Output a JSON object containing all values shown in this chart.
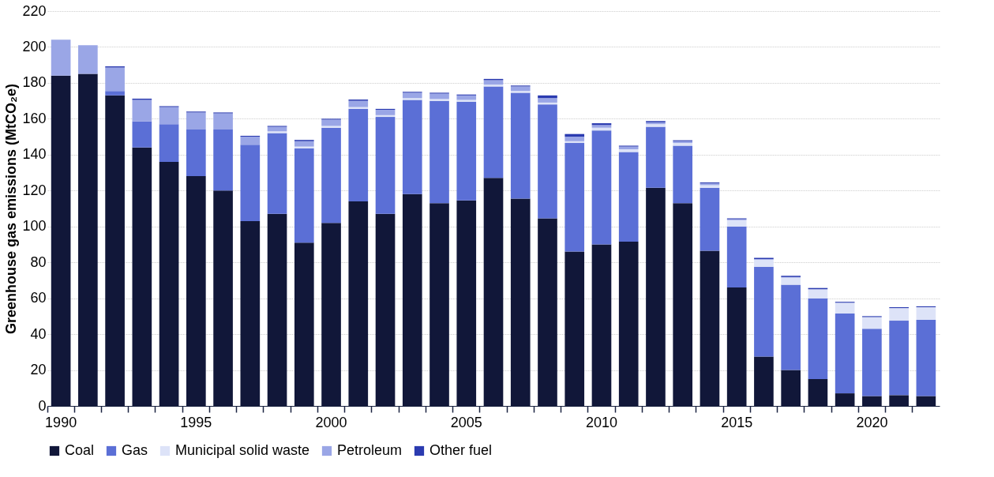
{
  "chart_data": {
    "type": "bar",
    "stacked": true,
    "ylabel": "Greenhouse gas emissions (MtCO₂e)",
    "categories": [
      "1990",
      null,
      null,
      null,
      null,
      "1995",
      null,
      null,
      null,
      null,
      "2000",
      null,
      null,
      null,
      null,
      "2005",
      null,
      null,
      null,
      null,
      "2010",
      null,
      null,
      null,
      null,
      "2015",
      null,
      null,
      null,
      null,
      "2020",
      null,
      null
    ],
    "series": [
      {
        "name": "Coal",
        "color": "#111739",
        "values": [
          184,
          185,
          173,
          144,
          136,
          128,
          120,
          103,
          107,
          91,
          102,
          114,
          107,
          118,
          113,
          114.5,
          127,
          115.5,
          104.5,
          86,
          90,
          91.5,
          121.5,
          113,
          86.5,
          66,
          27.5,
          20,
          15,
          7,
          5.5,
          6,
          5.5
        ]
      },
      {
        "name": "Gas",
        "color": "#5b6fd6",
        "values": [
          0,
          0,
          2.5,
          14.5,
          21,
          26,
          34,
          42.5,
          45,
          52.5,
          53,
          51.5,
          54,
          52.5,
          57,
          55,
          51,
          59,
          63.5,
          60.5,
          63.5,
          50,
          34,
          32,
          35,
          34,
          50,
          47.5,
          45,
          44.5,
          37.5,
          41.5,
          42.5
        ]
      },
      {
        "name": "Municipal solid waste",
        "color": "#dde3f8",
        "values": [
          0,
          0,
          0,
          0,
          0,
          0,
          0,
          0,
          1,
          1,
          1,
          1,
          1,
          1,
          1,
          1,
          1,
          1,
          1,
          1,
          1.5,
          1.5,
          1.5,
          1.5,
          1.5,
          3.5,
          4,
          4,
          5,
          6,
          6.5,
          7,
          7
        ]
      },
      {
        "name": "Petroleum",
        "color": "#9aa6e6",
        "values": [
          20,
          16,
          13,
          12,
          9.5,
          9.5,
          9,
          4.5,
          2.5,
          3,
          3.5,
          3.5,
          3,
          3,
          3,
          2.5,
          2.5,
          2.5,
          2.5,
          2.5,
          1.5,
          1.5,
          1,
          1,
          1,
          0.5,
          0.3,
          0.3,
          0,
          0,
          0,
          0,
          0
        ]
      },
      {
        "name": "Other fuel",
        "color": "#2b3bb0",
        "values": [
          0,
          0,
          0.7,
          0.7,
          0.5,
          0.5,
          0.5,
          0.5,
          0.5,
          0.7,
          0.5,
          0.7,
          0.5,
          0.5,
          0.5,
          0.5,
          0.7,
          0.5,
          1.5,
          1.5,
          1,
          0.5,
          0.7,
          0.5,
          0.5,
          0.5,
          0.7,
          0.7,
          0.7,
          0.5,
          0.5,
          0.5,
          0.5
        ]
      }
    ],
    "ylim": [
      0,
      220
    ],
    "yticks": [
      0,
      20,
      40,
      60,
      80,
      100,
      120,
      140,
      160,
      180,
      200,
      220
    ],
    "grid": "y",
    "legend": "bottom"
  }
}
